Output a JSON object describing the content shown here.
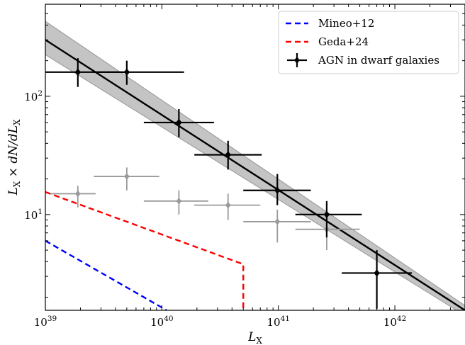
{
  "chart_data": {
    "type": "scatter",
    "title": "",
    "xlabel": "L_X",
    "ylabel": "L_X × dN/dL_X",
    "xscale": "log",
    "yscale": "log",
    "xlim": [
      1e+39,
      4e+42
    ],
    "ylim": [
      1.55,
      600
    ],
    "xticks": [
      {
        "value": 1e+39,
        "base": "10",
        "exp": "39"
      },
      {
        "value": 1e+40,
        "base": "10",
        "exp": "40"
      },
      {
        "value": 1e+41,
        "base": "10",
        "exp": "41"
      },
      {
        "value": 1e+42,
        "base": "10",
        "exp": "42"
      }
    ],
    "yticks": [
      {
        "value": 10,
        "base": "10",
        "exp": "1"
      },
      {
        "value": 100,
        "base": "10",
        "exp": "2"
      }
    ],
    "grid": false,
    "legend_position": "top-right",
    "series": [
      {
        "name": "Mineo+12",
        "kind": "dashed-line",
        "color": "#0000ff",
        "points": [
          [
            1e+39,
            6.0
          ],
          [
            1.1e+40,
            1.55
          ]
        ]
      },
      {
        "name": "Geda+24",
        "kind": "dashed-line",
        "color": "#ff0000",
        "points": [
          [
            1e+39,
            15.5
          ],
          [
            5e+40,
            3.8
          ],
          [
            5e+40,
            1.55
          ]
        ]
      },
      {
        "name": "AGN in dwarf galaxies",
        "kind": "errorbar",
        "color": "#000000",
        "points": [
          {
            "x": 1.9e+39,
            "y": 160,
            "xerr": [
              9e+38,
              5e+39
            ],
            "yerr": [
              120,
              210
            ]
          },
          {
            "x": 5e+39,
            "y": 160,
            "xerr": [
              2.6e+39,
              1.55e+40
            ],
            "yerr": [
              125,
              200
            ]
          },
          {
            "x": 1.4e+40,
            "y": 60,
            "xerr": [
              7e+39,
              2.8e+40
            ],
            "yerr": [
              45,
              78
            ]
          },
          {
            "x": 3.7e+40,
            "y": 32,
            "xerr": [
              1.9e+40,
              7.2e+40
            ],
            "yerr": [
              24,
              42
            ]
          },
          {
            "x": 9.8e+40,
            "y": 16,
            "xerr": [
              5e+40,
              1.9e+41
            ],
            "yerr": [
              12,
              22
            ]
          },
          {
            "x": 2.6e+41,
            "y": 10,
            "xerr": [
              1.4e+41,
              5.2e+41
            ],
            "yerr": [
              6.4,
              13
            ]
          },
          {
            "x": 7e+41,
            "y": 3.2,
            "xerr": [
              3.5e+41,
              1.4e+42
            ],
            "yerr": [
              1.6,
              5
            ]
          }
        ]
      },
      {
        "name": "",
        "kind": "errorbar",
        "color": "#9a9a9a",
        "points": [
          {
            "x": 1.9e+39,
            "y": 15,
            "xerr": [
              1.1e+39,
              2.7e+39
            ],
            "yerr": [
              11.5,
              17.5
            ]
          },
          {
            "x": 5e+39,
            "y": 21,
            "xerr": [
              2.6e+39,
              9.5e+39
            ],
            "yerr": [
              16,
              25
            ]
          },
          {
            "x": 1.4e+40,
            "y": 13,
            "xerr": [
              7e+39,
              2.5e+40
            ],
            "yerr": [
              10,
              16
            ]
          },
          {
            "x": 3.7e+40,
            "y": 12,
            "xerr": [
              1.9e+40,
              7e+40
            ],
            "yerr": [
              9,
              15
            ]
          },
          {
            "x": 9.8e+40,
            "y": 8.7,
            "xerr": [
              5e+40,
              1.9e+41
            ],
            "yerr": [
              5.8,
              11
            ]
          },
          {
            "x": 2.6e+41,
            "y": 7.5,
            "xerr": [
              1.4e+41,
              5e+41
            ],
            "yerr": [
              5,
              9.5
            ]
          }
        ]
      },
      {
        "name": "",
        "kind": "fit-line",
        "color": "#000000",
        "band_color": "#a0a0a0",
        "points": [
          [
            1e+39,
            300
          ],
          [
            4e+42,
            1.55
          ]
        ],
        "band_upper": [
          [
            1e+39,
            430
          ],
          [
            4e+42,
            1.7
          ]
        ],
        "band_lower": [
          [
            1e+39,
            225
          ],
          [
            4e+42,
            1.4
          ]
        ]
      }
    ],
    "legend": [
      {
        "label": "Mineo+12",
        "color": "#0000ff",
        "style": "dashed"
      },
      {
        "label": "Geda+24",
        "color": "#ff0000",
        "style": "dashed"
      },
      {
        "label": "AGN in dwarf galaxies",
        "color": "#000000",
        "style": "errorbar"
      }
    ]
  }
}
